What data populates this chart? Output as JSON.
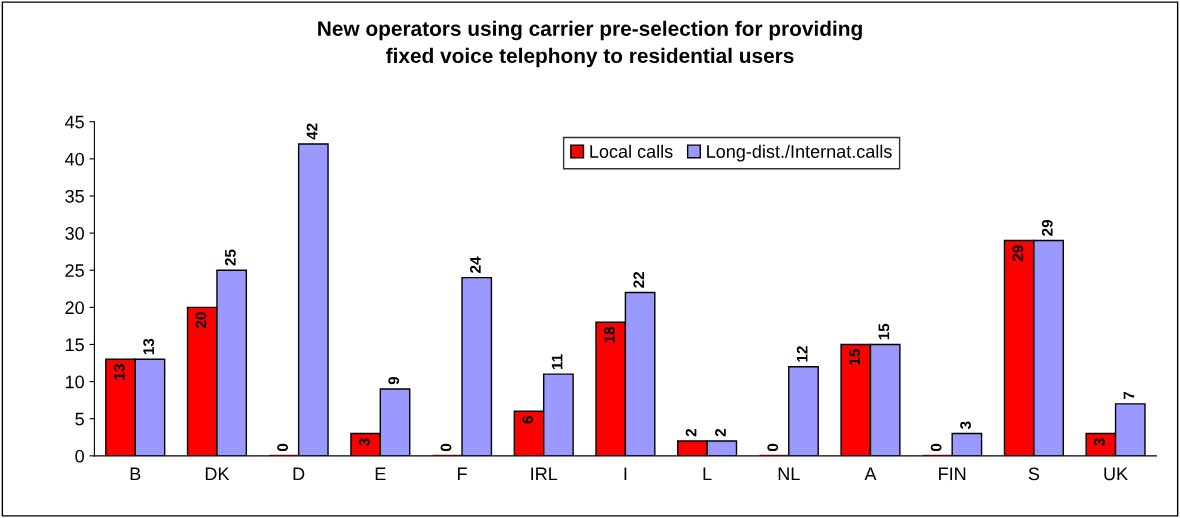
{
  "chart_data": {
    "type": "bar",
    "title": "New operators using carrier pre-selection for providing\nfixed voice telephony to residential users",
    "categories": [
      "B",
      "DK",
      "D",
      "E",
      "F",
      "IRL",
      "I",
      "L",
      "NL",
      "A",
      "FIN",
      "S",
      "UK"
    ],
    "series": [
      {
        "name": "Local calls",
        "color": "#ff0000",
        "values": [
          13,
          20,
          0,
          3,
          0,
          6,
          18,
          2,
          0,
          15,
          0,
          29,
          3
        ]
      },
      {
        "name": "Long-dist./Internat.calls",
        "color": "#9999ff",
        "values": [
          13,
          25,
          42,
          9,
          24,
          11,
          22,
          2,
          12,
          15,
          3,
          29,
          7
        ]
      }
    ],
    "ylim": [
      0,
      45
    ],
    "yticks": [
      0,
      5,
      10,
      15,
      20,
      25,
      30,
      35,
      40,
      45
    ],
    "grid": false,
    "legend": "top",
    "data_labels": true
  }
}
